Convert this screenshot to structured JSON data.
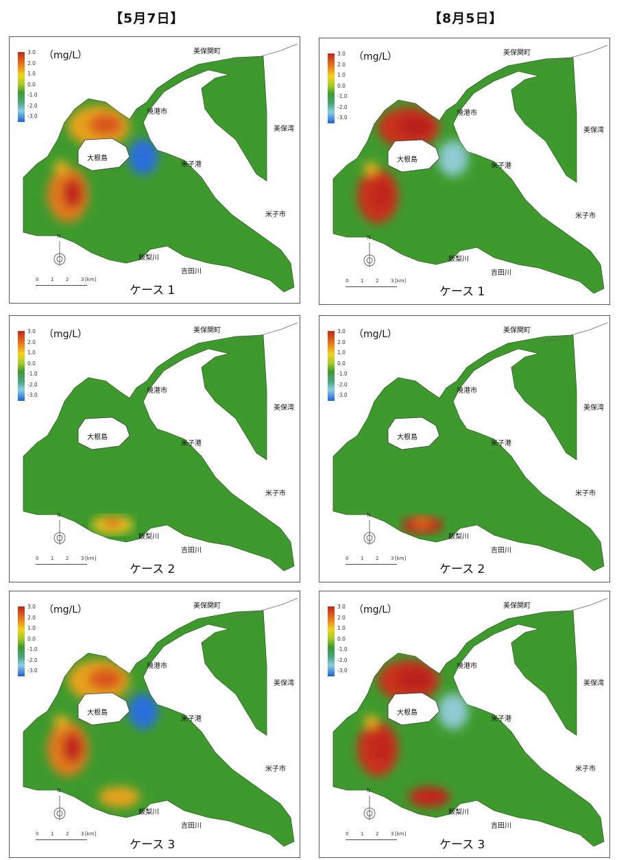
{
  "titles": {
    "left": "【5月7日】",
    "right": "【8月5日】"
  },
  "legend": {
    "unit": "（mg/L）",
    "ticks": [
      "3.0",
      "2.0",
      "1.0",
      "0.0",
      "-1.0",
      "-2.0",
      "-3.0"
    ]
  },
  "places": {
    "mihoseki": "美保関町",
    "sakaiminato": "境港市",
    "mihowan": "美保湾",
    "daikonshima": "大根島",
    "yonagoport": "米子港",
    "yonagocity": "米子市",
    "iinashi": "飯梨川",
    "yoshida": "吉田川"
  },
  "scalebar": {
    "labels": [
      "0",
      "1",
      "2",
      "3"
    ],
    "unit": "[km]"
  },
  "compass": {
    "north": "N"
  },
  "cases": [
    "ケース 1",
    "ケース 2",
    "ケース 3"
  ],
  "colors": {
    "base_green": "#3f9a2e",
    "high_red": "#c0281c",
    "low_blue": "#2a6edc"
  }
}
